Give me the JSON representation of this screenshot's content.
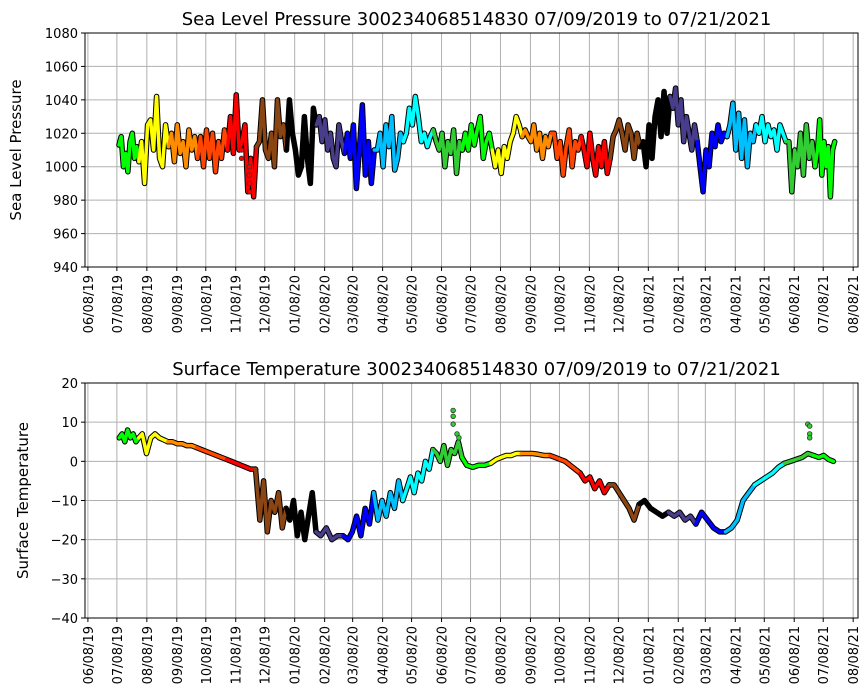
{
  "chart_data": [
    {
      "type": "line",
      "title": "Sea Level Pressure 300234068514830  07/09/2019 to 07/21/2021",
      "xlabel": "",
      "ylabel": "Sea Level Pressure",
      "ylim": [
        940,
        1080
      ],
      "yticks": [
        940,
        960,
        980,
        1000,
        1020,
        1040,
        1060,
        1080
      ],
      "xticks": [
        "06/08/19",
        "07/08/19",
        "08/08/19",
        "09/08/19",
        "10/08/19",
        "11/08/19",
        "12/08/19",
        "01/08/20",
        "02/08/20",
        "03/08/20",
        "04/08/20",
        "05/08/20",
        "06/08/20",
        "07/08/20",
        "08/08/20",
        "09/08/20",
        "10/08/20",
        "11/08/20",
        "12/08/20",
        "01/08/21",
        "02/08/21",
        "03/08/21",
        "04/08/21",
        "05/08/21",
        "06/08/21",
        "07/08/21",
        "08/08/21"
      ],
      "grid": true,
      "start_date": "2019-07-09",
      "end_date": "2021-07-21",
      "series": [
        {
          "month": "2019-07",
          "color": "#00ff00",
          "values": [
            1013,
            1018,
            1000,
            1008,
            997,
            1015,
            1020,
            1005,
            1012,
            1003
          ]
        },
        {
          "month": "2019-08",
          "color": "#ffff00",
          "values": [
            1015,
            990,
            1025,
            1028,
            1010,
            1042,
            1005,
            1000,
            1025,
            1012
          ]
        },
        {
          "month": "2019-09",
          "color": "#ff8c00",
          "values": [
            1020,
            1003,
            1025,
            1008,
            1015,
            1000,
            1022,
            1010,
            1018,
            1005
          ]
        },
        {
          "month": "2019-10",
          "color": "#ff4500",
          "values": [
            1018,
            1000,
            1022,
            1005,
            1020,
            997,
            1015,
            1005,
            1022,
            1010
          ]
        },
        {
          "month": "2019-11",
          "color": "#ff0000",
          "values": [
            1030,
            1008,
            1043,
            1010,
            1015,
            1025,
            985,
            1005,
            982,
            1012
          ]
        },
        {
          "month": "2019-12",
          "color": "#8b4513",
          "values": [
            1015,
            1040,
            1010,
            1005,
            1020,
            1000,
            1040,
            1018,
            1025,
            1010
          ]
        },
        {
          "month": "2020-01",
          "color": "#000000",
          "values": [
            1040,
            1020,
            1010,
            995,
            1000,
            1030,
            1005,
            990,
            1035,
            1025
          ]
        },
        {
          "month": "2020-02",
          "color": "#483d8b",
          "values": [
            1030,
            1015,
            1028,
            1010,
            1020,
            1005,
            1000,
            1025,
            1015,
            1008
          ]
        },
        {
          "month": "2020-03",
          "color": "#0000ff",
          "values": [
            1020,
            1005,
            1025,
            987,
            1010,
            1037,
            995,
            1015,
            990,
            1010
          ]
        },
        {
          "month": "2020-04",
          "color": "#00bfff",
          "values": [
            1010,
            1020,
            1000,
            1025,
            1012,
            1030,
            998,
            1005,
            1020,
            1015
          ]
        },
        {
          "month": "2020-05",
          "color": "#00ffff",
          "values": [
            1020,
            1035,
            1025,
            1042,
            1030,
            1015,
            1020,
            1012,
            1018,
            1022
          ]
        },
        {
          "month": "2020-06",
          "color": "#32cd32",
          "values": [
            1015,
            1010,
            1020,
            1000,
            1015,
            1008,
            1022,
            996,
            1015,
            1010
          ]
        },
        {
          "month": "2020-07",
          "color": "#00ff00",
          "values": [
            1020,
            1010,
            1025,
            1013,
            1022,
            1030,
            1005,
            1015,
            1020,
            1010
          ]
        },
        {
          "month": "2020-08",
          "color": "#ffff00",
          "values": [
            1000,
            1010,
            996,
            1012,
            1005,
            1015,
            1020,
            1030,
            1025,
            1018
          ]
        },
        {
          "month": "2020-09",
          "color": "#ff8c00",
          "values": [
            1022,
            1018,
            1015,
            1025,
            1010,
            1020,
            1005,
            1018,
            1012,
            1020
          ]
        },
        {
          "month": "2020-10",
          "color": "#ff4500",
          "values": [
            1020,
            1005,
            1015,
            995,
            1012,
            1022,
            1000,
            1015,
            1010,
            1018
          ]
        },
        {
          "month": "2020-11",
          "color": "#ff0000",
          "values": [
            1010,
            1000,
            1020,
            1005,
            995,
            1012,
            1000,
            1015,
            996,
            1005
          ]
        },
        {
          "month": "2020-12",
          "color": "#8b4513",
          "values": [
            1018,
            1022,
            1028,
            1020,
            1010,
            1025,
            1020,
            1005,
            1020,
            1012
          ]
        },
        {
          "month": "2021-01",
          "color": "#000000",
          "values": [
            1015,
            1000,
            1025,
            1005,
            1030,
            1040,
            1018,
            1045,
            1020,
            1042
          ]
        },
        {
          "month": "2021-02",
          "color": "#483d8b",
          "values": [
            1035,
            1047,
            1025,
            1040,
            1015,
            1030,
            1020,
            1010,
            1025,
            1015
          ]
        },
        {
          "month": "2021-03",
          "color": "#0000ff",
          "values": [
            1000,
            985,
            1010,
            1000,
            1020,
            1012,
            1025,
            1015,
            1020,
            1018
          ]
        },
        {
          "month": "2021-04",
          "color": "#00bfff",
          "values": [
            1025,
            1038,
            1010,
            1032,
            1005,
            1028,
            1000,
            1020,
            1015,
            1025
          ]
        },
        {
          "month": "2021-05",
          "color": "#00ffff",
          "values": [
            1020,
            1030,
            1015,
            1025,
            1018,
            1022,
            1010,
            1025,
            1020,
            1015
          ]
        },
        {
          "month": "2021-06",
          "color": "#32cd32",
          "values": [
            1015,
            985,
            1010,
            1000,
            1020,
            995,
            1025,
            1005,
            1015,
            1000
          ]
        },
        {
          "month": "2021-07",
          "color": "#00ff00",
          "values": [
            1010,
            1028,
            995,
            1015,
            1000,
            1012,
            982,
            1010,
            1015
          ]
        }
      ],
      "outliers": [
        {
          "date": "2019-11-14",
          "value": 1010,
          "color": "#ff0000"
        },
        {
          "date": "2019-11-14",
          "value": 1005,
          "color": "#ff0000"
        },
        {
          "date": "2019-11-22",
          "value": 1000,
          "color": "#ff0000"
        },
        {
          "date": "2019-11-22",
          "value": 995,
          "color": "#ff0000"
        },
        {
          "date": "2019-11-22",
          "value": 990,
          "color": "#ff0000"
        },
        {
          "date": "2019-11-22",
          "value": 985,
          "color": "#ff0000"
        }
      ]
    },
    {
      "type": "line",
      "title": "Surface Temperature 300234068514830  07/09/2019 to 07/21/2021",
      "xlabel": "",
      "ylabel": "Surface Temperature",
      "ylim": [
        -40,
        20
      ],
      "yticks": [
        -40,
        -30,
        -20,
        -10,
        0,
        10,
        20
      ],
      "ytick_labels": [
        "−40",
        "−30",
        "−20",
        "−10",
        "0",
        "10",
        "20"
      ],
      "xticks": [
        "06/08/19",
        "07/08/19",
        "08/08/19",
        "09/08/19",
        "10/08/19",
        "11/08/19",
        "12/08/19",
        "01/08/20",
        "02/08/20",
        "03/08/20",
        "04/08/20",
        "05/08/20",
        "06/08/20",
        "07/08/20",
        "08/08/20",
        "09/08/20",
        "10/08/20",
        "11/08/20",
        "12/08/20",
        "01/08/21",
        "02/08/21",
        "03/08/21",
        "04/08/21",
        "05/08/21",
        "06/08/21",
        "07/08/21",
        "08/08/21"
      ],
      "grid": true,
      "start_date": "2019-07-09",
      "end_date": "2021-07-21",
      "series": [
        {
          "month": "2019-07",
          "color": "#00ff00",
          "values": [
            6,
            7,
            5,
            8,
            6,
            7,
            5,
            6
          ]
        },
        {
          "month": "2019-08",
          "color": "#ffff00",
          "values": [
            7,
            2,
            6,
            7,
            6,
            5.5,
            5
          ]
        },
        {
          "month": "2019-09",
          "color": "#ff8c00",
          "values": [
            5,
            4.5,
            4.5,
            4,
            4,
            3.5
          ]
        },
        {
          "month": "2019-10",
          "color": "#ff4500",
          "values": [
            3,
            2.5,
            2,
            1.5,
            1,
            0.5
          ]
        },
        {
          "month": "2019-11",
          "color": "#ff0000",
          "values": [
            0,
            -0.5,
            -1,
            -1.5,
            -2,
            -2
          ]
        },
        {
          "month": "2019-12",
          "color": "#8b4513",
          "values": [
            -15,
            -5,
            -18,
            -10,
            -13,
            -8,
            -17,
            -12
          ]
        },
        {
          "month": "2020-01",
          "color": "#000000",
          "values": [
            -15,
            -10,
            -19,
            -13,
            -20,
            -14,
            -8,
            -18
          ]
        },
        {
          "month": "2020-02",
          "color": "#483d8b",
          "values": [
            -19,
            -17,
            -20,
            -19,
            -19
          ]
        },
        {
          "month": "2020-03",
          "color": "#0000ff",
          "values": [
            -20,
            -18,
            -14,
            -19,
            -12,
            -16,
            -8
          ]
        },
        {
          "month": "2020-04",
          "color": "#00bfff",
          "values": [
            -15,
            -10,
            -14,
            -8,
            -12,
            -5,
            -10
          ]
        },
        {
          "month": "2020-05",
          "color": "#00ffff",
          "values": [
            -7,
            -4,
            -8,
            -3,
            -5,
            0,
            -2,
            3
          ]
        },
        {
          "month": "2020-06",
          "color": "#32cd32",
          "values": [
            2,
            0,
            4,
            -1,
            3,
            2,
            5,
            1
          ]
        },
        {
          "month": "2020-07",
          "color": "#00ff00",
          "values": [
            -1,
            -1.5,
            -1,
            -1,
            -0.5
          ]
        },
        {
          "month": "2020-08",
          "color": "#ffff00",
          "values": [
            0.5,
            1,
            1.5,
            1.5,
            2,
            2
          ]
        },
        {
          "month": "2020-09",
          "color": "#ff8c00",
          "values": [
            2,
            2,
            1.8,
            1.5,
            1.5
          ]
        },
        {
          "month": "2020-10",
          "color": "#ff4500",
          "values": [
            1,
            0.5,
            0,
            -1,
            -2,
            -3
          ]
        },
        {
          "month": "2020-11",
          "color": "#ff0000",
          "values": [
            -5,
            -4,
            -7,
            -5,
            -8,
            -6
          ]
        },
        {
          "month": "2020-12",
          "color": "#8b4513",
          "values": [
            -6,
            -8,
            -10,
            -12,
            -15,
            -11
          ]
        },
        {
          "month": "2021-01",
          "color": "#000000",
          "values": [
            -10,
            -12,
            -13,
            -14,
            -13
          ]
        },
        {
          "month": "2021-02",
          "color": "#483d8b",
          "values": [
            -14,
            -13,
            -15,
            -14,
            -16
          ]
        },
        {
          "month": "2021-03",
          "color": "#0000ff",
          "values": [
            -13,
            -15,
            -17,
            -18,
            -18
          ]
        },
        {
          "month": "2021-04",
          "color": "#00bfff",
          "values": [
            -17,
            -15,
            -10,
            -8,
            -6
          ]
        },
        {
          "month": "2021-05",
          "color": "#00ffff",
          "values": [
            -5,
            -4,
            -3,
            -1.5,
            -0.5
          ]
        },
        {
          "month": "2021-06",
          "color": "#32cd32",
          "values": [
            0,
            0.5,
            1,
            2,
            1.5
          ]
        },
        {
          "month": "2021-07",
          "color": "#00ff00",
          "values": [
            1,
            1.5,
            0.5,
            0
          ]
        }
      ],
      "outliers": [
        {
          "date": "2020-06-20",
          "value": 13,
          "color": "#32cd32"
        },
        {
          "date": "2020-06-20",
          "value": 11.5,
          "color": "#32cd32"
        },
        {
          "date": "2020-06-20",
          "value": 9.5,
          "color": "#32cd32"
        },
        {
          "date": "2020-06-24",
          "value": 7,
          "color": "#32cd32"
        },
        {
          "date": "2020-06-26",
          "value": 6,
          "color": "#32cd32"
        },
        {
          "date": "2021-06-22",
          "value": 9.5,
          "color": "#32cd32"
        },
        {
          "date": "2021-06-24",
          "value": 9,
          "color": "#32cd32"
        },
        {
          "date": "2021-06-24",
          "value": 7,
          "color": "#32cd32"
        },
        {
          "date": "2021-06-24",
          "value": 6,
          "color": "#32cd32"
        }
      ]
    }
  ]
}
